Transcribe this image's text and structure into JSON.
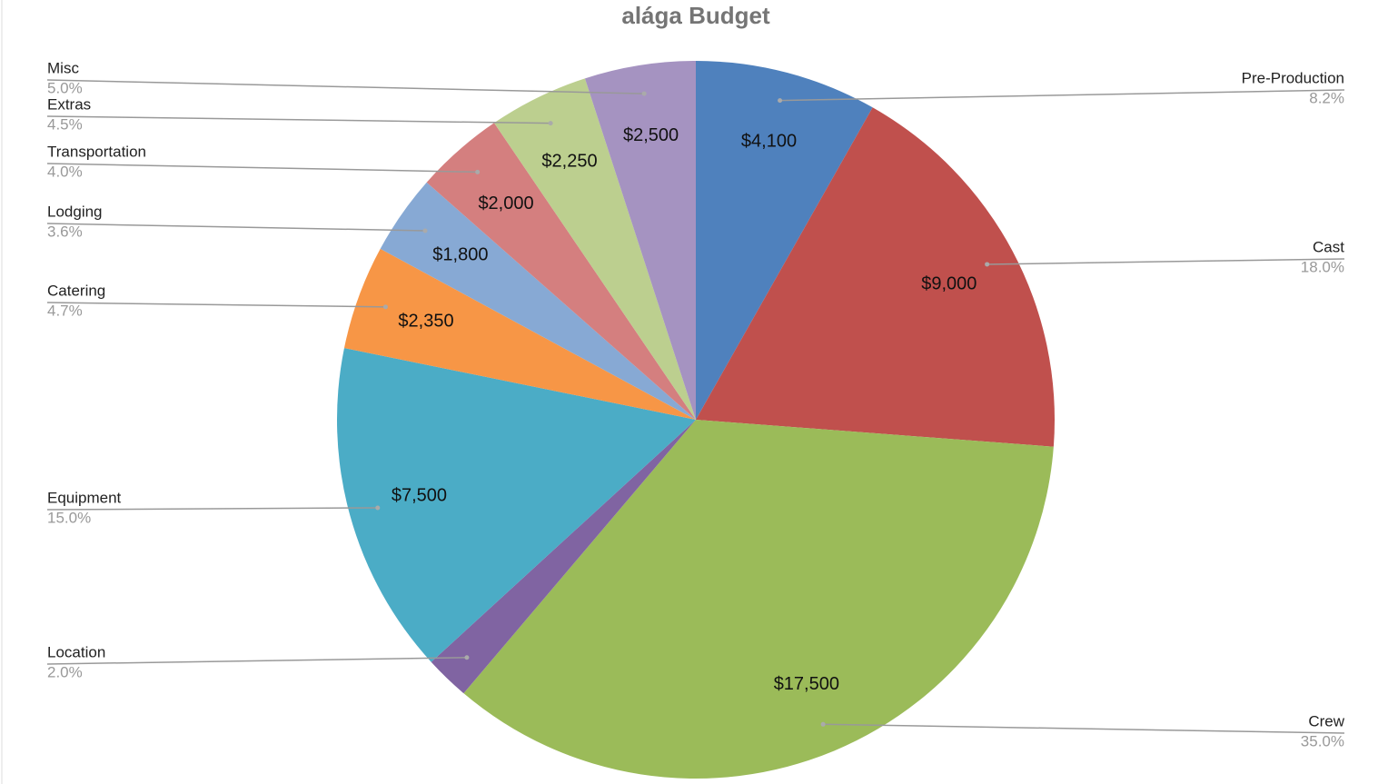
{
  "chart_data": {
    "type": "pie",
    "title": "alága Budget",
    "categories": [
      "Pre-Production",
      "Cast",
      "Crew",
      "Location",
      "Equipment",
      "Catering",
      "Lodging",
      "Transportation",
      "Extras",
      "Misc"
    ],
    "values": [
      4100,
      9000,
      17500,
      1000,
      7500,
      2350,
      1800,
      2000,
      2250,
      2500
    ],
    "value_labels": [
      "$4,100",
      "$9,000",
      "$17,500",
      null,
      "$7,500",
      "$2,350",
      "$1,800",
      "$2,000",
      "$2,250",
      "$2,500"
    ],
    "percent_labels": [
      "8.2%",
      "18.0%",
      "35.0%",
      "2.0%",
      "15.0%",
      "4.7%",
      "3.6%",
      "4.0%",
      "4.5%",
      "5.0%"
    ],
    "colors": [
      "#4f81bd",
      "#c0504d",
      "#9bbb59",
      "#8064a2",
      "#4bacc6",
      "#f79646",
      "#87a9d4",
      "#d47f7f",
      "#bccf8f",
      "#a593c1"
    ]
  }
}
